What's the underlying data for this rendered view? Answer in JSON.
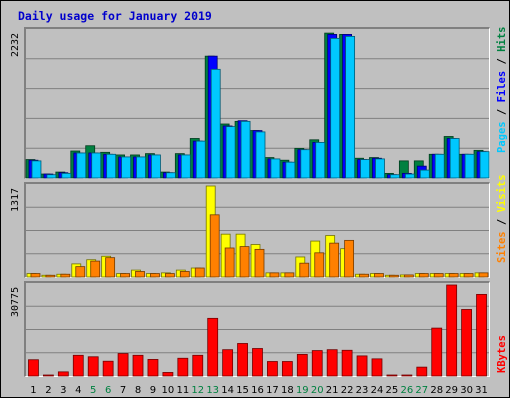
{
  "title": "Daily usage for January 2019",
  "chart_data": [
    {
      "type": "bar",
      "panel": "top",
      "ymax_label": "2232",
      "ymax": 2232,
      "categories": [
        "1",
        "2",
        "3",
        "4",
        "5",
        "6",
        "7",
        "8",
        "9",
        "10",
        "11",
        "12",
        "13",
        "14",
        "15",
        "16",
        "17",
        "18",
        "19",
        "20",
        "21",
        "22",
        "23",
        "24",
        "25",
        "26",
        "27",
        "28",
        "29",
        "30",
        "31"
      ],
      "weekend_categories": [
        "5",
        "6",
        "12",
        "13",
        "19",
        "20",
        "26",
        "27"
      ],
      "series": [
        {
          "name": "Hits",
          "color": "#008040",
          "values": [
            280,
            60,
            90,
            410,
            490,
            390,
            350,
            350,
            370,
            90,
            370,
            600,
            1850,
            820,
            860,
            720,
            310,
            270,
            450,
            580,
            2200,
            2180,
            300,
            310,
            70,
            260,
            260,
            360,
            630,
            360,
            420
          ]
        },
        {
          "name": "Files",
          "color": "#0000ff",
          "values": [
            270,
            60,
            80,
            380,
            380,
            360,
            320,
            320,
            350,
            80,
            350,
            560,
            1850,
            790,
            870,
            720,
            290,
            240,
            430,
            540,
            2180,
            2180,
            280,
            300,
            50,
            70,
            180,
            360,
            600,
            360,
            400
          ]
        },
        {
          "name": "Pages",
          "color": "#00c8ff",
          "values": [
            260,
            50,
            70,
            380,
            380,
            360,
            320,
            320,
            350,
            80,
            350,
            560,
            1650,
            780,
            860,
            700,
            290,
            240,
            430,
            540,
            2120,
            2150,
            280,
            290,
            50,
            60,
            120,
            360,
            600,
            360,
            400
          ]
        }
      ],
      "legend": [
        "Pages",
        "/",
        "Files",
        "/",
        "Hits"
      ]
    },
    {
      "type": "bar",
      "panel": "middle",
      "ymax_label": "1317",
      "ymax": 1317,
      "categories": [
        "1",
        "2",
        "3",
        "4",
        "5",
        "6",
        "7",
        "8",
        "9",
        "10",
        "11",
        "12",
        "13",
        "14",
        "15",
        "16",
        "17",
        "18",
        "19",
        "20",
        "21",
        "22",
        "23",
        "24",
        "25",
        "26",
        "27",
        "28",
        "29",
        "30",
        "31"
      ],
      "series": [
        {
          "name": "Visits",
          "color": "#ffff00",
          "values": [
            50,
            25,
            40,
            190,
            250,
            300,
            50,
            100,
            50,
            60,
            100,
            130,
            1317,
            620,
            620,
            470,
            60,
            60,
            290,
            520,
            600,
            410,
            40,
            50,
            25,
            30,
            50,
            50,
            50,
            50,
            60
          ]
        },
        {
          "name": "Sites",
          "color": "#ff8000",
          "values": [
            50,
            25,
            40,
            150,
            230,
            280,
            50,
            80,
            50,
            50,
            80,
            130,
            900,
            420,
            440,
            400,
            60,
            60,
            200,
            350,
            490,
            530,
            40,
            50,
            25,
            30,
            50,
            50,
            50,
            50,
            60
          ]
        }
      ],
      "legend": [
        "Sites",
        "/",
        "Visits"
      ]
    },
    {
      "type": "bar",
      "panel": "bottom",
      "ymax_label": "30775",
      "ymax": 30775,
      "categories": [
        "1",
        "2",
        "3",
        "4",
        "5",
        "6",
        "7",
        "8",
        "9",
        "10",
        "11",
        "12",
        "13",
        "14",
        "15",
        "16",
        "17",
        "18",
        "19",
        "20",
        "21",
        "22",
        "23",
        "24",
        "25",
        "26",
        "27",
        "28",
        "29",
        "30",
        "31"
      ],
      "series": [
        {
          "name": "KBytes",
          "color": "#ff0000",
          "values": [
            5500,
            300,
            1400,
            7000,
            6500,
            5000,
            7600,
            7000,
            5600,
            1200,
            6000,
            7000,
            19500,
            8900,
            11000,
            9300,
            4900,
            4900,
            7300,
            8600,
            8900,
            8700,
            6800,
            5800,
            100,
            200,
            3000,
            16200,
            30775,
            22500,
            27600
          ]
        }
      ],
      "legend": [
        "KBytes"
      ]
    }
  ]
}
